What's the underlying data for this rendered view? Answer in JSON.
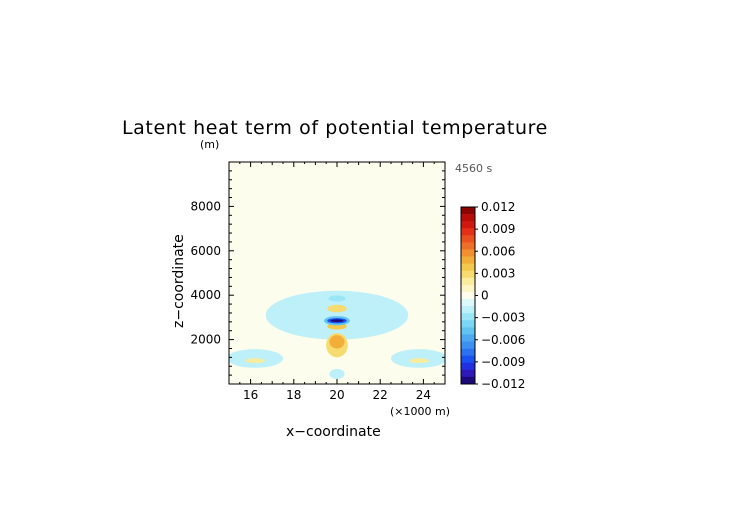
{
  "chart_data": {
    "type": "heatmap",
    "title": "Latent heat term of potential temperature",
    "y_unit": "(m)",
    "xlabel": "x−coordinate",
    "ylabel": "z−coordinate",
    "x_unit": "(×1000 m)",
    "time_label": "4560 s",
    "xlim": [
      15,
      25
    ],
    "ylim": [
      0,
      10000
    ],
    "x_ticks": [
      "16",
      "18",
      "20",
      "22",
      "24"
    ],
    "y_ticks": [
      "2000",
      "4000",
      "6000",
      "8000"
    ],
    "colorbar": {
      "levels": [
        -0.012,
        -0.011,
        -0.01,
        -0.009,
        -0.008,
        -0.007,
        -0.006,
        -0.005,
        -0.004,
        -0.003,
        -0.002,
        -0.001,
        0,
        0.001,
        0.002,
        0.003,
        0.004,
        0.005,
        0.006,
        0.007,
        0.008,
        0.009,
        0.01,
        0.011,
        0.012
      ],
      "colors": [
        "#1d0a7a",
        "#2f18b8",
        "#2030e0",
        "#1a4ff0",
        "#2a72f0",
        "#3c90f0",
        "#4eaaf0",
        "#60c4f0",
        "#7ad6f4",
        "#9ae6f6",
        "#bdf0f8",
        "#dcf8fb",
        "#fdfdee",
        "#fcf6c4",
        "#f9ec9c",
        "#f6dc70",
        "#f4c84a",
        "#f2ae38",
        "#f09030",
        "#ee7028",
        "#ea5020",
        "#e43018",
        "#d01810",
        "#b80c08",
        "#8a0404"
      ],
      "tick_labels": [
        "0.012",
        "0.009",
        "0.006",
        "0.003",
        "0",
        "−0.003",
        "−0.006",
        "−0.009",
        "−0.012"
      ]
    },
    "field_features": [
      {
        "kind": "background",
        "value": 0.0002,
        "color": "#fdfdee"
      },
      {
        "kind": "ellipse",
        "x": 20,
        "z": 3100,
        "rx": 3.3,
        "rz": 1100,
        "value": -0.0015
      },
      {
        "kind": "ellipse",
        "x": 16.2,
        "z": 1150,
        "rx": 1.3,
        "rz": 420,
        "value": -0.0015
      },
      {
        "kind": "ellipse",
        "x": 23.8,
        "z": 1150,
        "rx": 1.3,
        "rz": 420,
        "value": -0.0015
      },
      {
        "kind": "ellipse",
        "x": 16.2,
        "z": 1050,
        "rx": 0.45,
        "rz": 110,
        "value": 0.002
      },
      {
        "kind": "ellipse",
        "x": 23.8,
        "z": 1050,
        "rx": 0.45,
        "rz": 110,
        "value": 0.002
      },
      {
        "kind": "ellipse",
        "x": 20,
        "z": 450,
        "rx": 0.35,
        "rz": 230,
        "value": -0.0015
      },
      {
        "kind": "ellipse",
        "x": 20,
        "z": 1750,
        "rx": 0.5,
        "rz": 550,
        "value": 0.003
      },
      {
        "kind": "ellipse",
        "x": 20,
        "z": 1900,
        "rx": 0.35,
        "rz": 300,
        "value": 0.005
      },
      {
        "kind": "ellipse",
        "x": 20,
        "z": 2600,
        "rx": 0.45,
        "rz": 150,
        "value": 0.004
      },
      {
        "kind": "ellipse",
        "x": 20,
        "z": 2850,
        "rx": 0.6,
        "rz": 210,
        "value": -0.005
      },
      {
        "kind": "ellipse",
        "x": 20,
        "z": 2850,
        "rx": 0.45,
        "rz": 120,
        "value": -0.009
      },
      {
        "kind": "ellipse",
        "x": 20,
        "z": 2850,
        "rx": 0.3,
        "rz": 60,
        "value": -0.012
      },
      {
        "kind": "ellipse",
        "x": 20,
        "z": 3400,
        "rx": 0.45,
        "rz": 170,
        "value": 0.003
      },
      {
        "kind": "ellipse",
        "x": 20,
        "z": 3850,
        "rx": 0.4,
        "rz": 140,
        "value": -0.003
      }
    ]
  }
}
